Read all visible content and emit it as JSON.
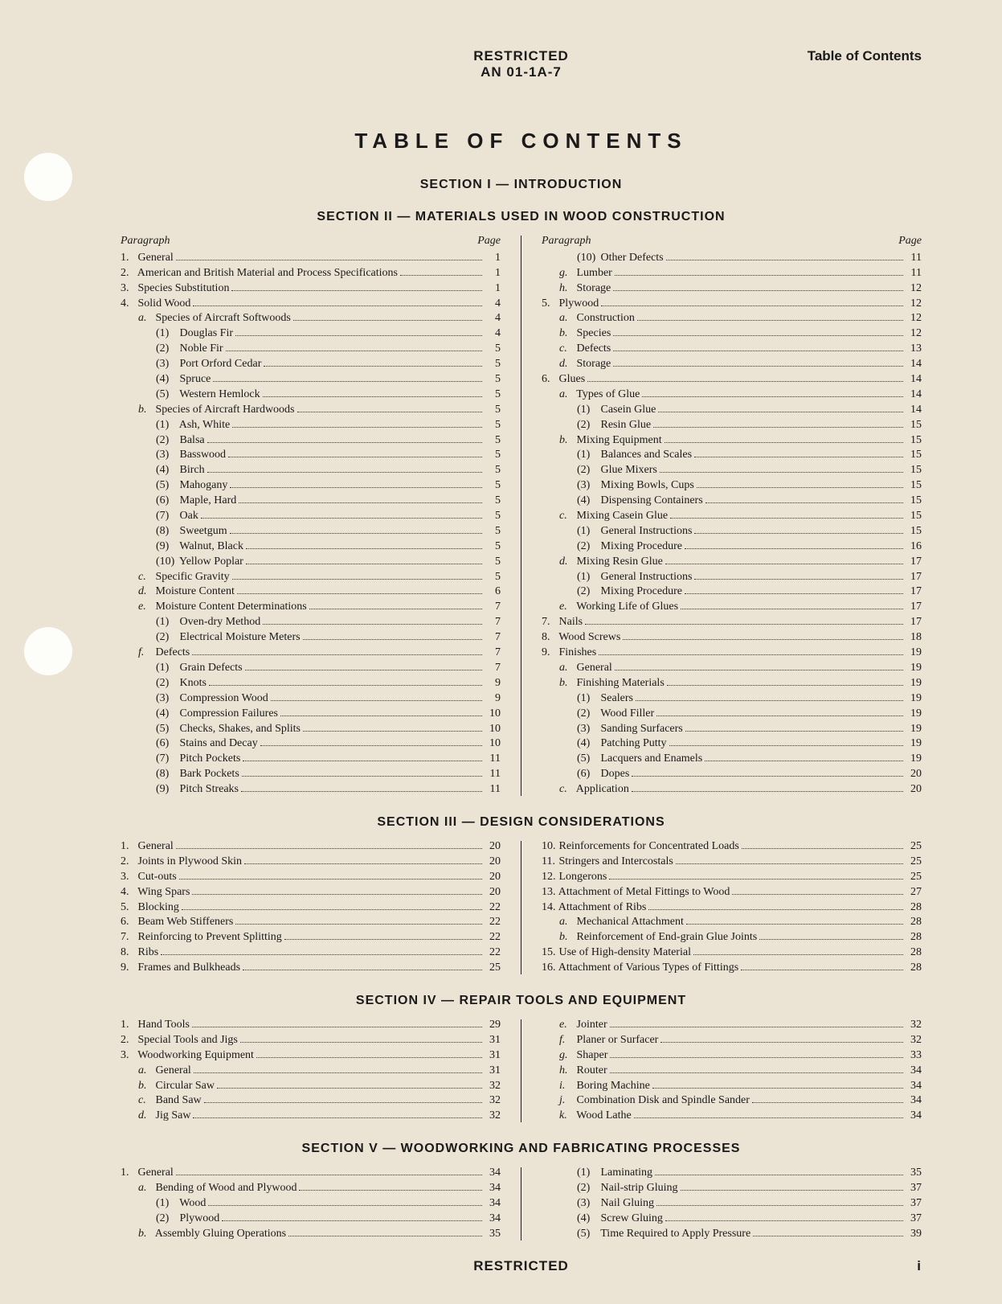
{
  "header": {
    "restricted": "RESTRICTED",
    "doc_id": "AN 01-1A-7",
    "right": "Table of Contents"
  },
  "main_title": "TABLE OF CONTENTS",
  "col_header": {
    "left": "Paragraph",
    "right": "Page"
  },
  "sections": [
    {
      "title": "SECTION I — INTRODUCTION",
      "left": [],
      "right": []
    },
    {
      "title": "SECTION II — MATERIALS USED IN WOOD CONSTRUCTION",
      "left": [
        {
          "i": 0,
          "n": "1.",
          "t": "General",
          "p": "1"
        },
        {
          "i": 0,
          "n": "2.",
          "t": "American and British Material and Process Specifications",
          "p": "1"
        },
        {
          "i": 0,
          "n": "3.",
          "t": "Species Substitution",
          "p": "1"
        },
        {
          "i": 0,
          "n": "4.",
          "t": "Solid Wood",
          "p": "4"
        },
        {
          "i": 1,
          "l": "a.",
          "t": "Species of Aircraft Softwoods",
          "p": "4"
        },
        {
          "i": 2,
          "pn": "(1)",
          "t": "Douglas Fir",
          "p": "4"
        },
        {
          "i": 2,
          "pn": "(2)",
          "t": "Noble Fir",
          "p": "5"
        },
        {
          "i": 2,
          "pn": "(3)",
          "t": "Port Orford Cedar",
          "p": "5"
        },
        {
          "i": 2,
          "pn": "(4)",
          "t": "Spruce",
          "p": "5"
        },
        {
          "i": 2,
          "pn": "(5)",
          "t": "Western Hemlock",
          "p": "5"
        },
        {
          "i": 1,
          "l": "b.",
          "t": "Species of Aircraft Hardwoods",
          "p": "5"
        },
        {
          "i": 2,
          "pn": "(1)",
          "t": "Ash, White",
          "p": "5"
        },
        {
          "i": 2,
          "pn": "(2)",
          "t": "Balsa",
          "p": "5"
        },
        {
          "i": 2,
          "pn": "(3)",
          "t": "Basswood",
          "p": "5"
        },
        {
          "i": 2,
          "pn": "(4)",
          "t": "Birch",
          "p": "5"
        },
        {
          "i": 2,
          "pn": "(5)",
          "t": "Mahogany",
          "p": "5"
        },
        {
          "i": 2,
          "pn": "(6)",
          "t": "Maple, Hard",
          "p": "5"
        },
        {
          "i": 2,
          "pn": "(7)",
          "t": "Oak",
          "p": "5"
        },
        {
          "i": 2,
          "pn": "(8)",
          "t": "Sweetgum",
          "p": "5"
        },
        {
          "i": 2,
          "pn": "(9)",
          "t": "Walnut, Black",
          "p": "5"
        },
        {
          "i": 2,
          "pn": "(10)",
          "t": "Yellow Poplar",
          "p": "5"
        },
        {
          "i": 1,
          "l": "c.",
          "t": "Specific Gravity",
          "p": "5"
        },
        {
          "i": 1,
          "l": "d.",
          "t": "Moisture Content",
          "p": "6"
        },
        {
          "i": 1,
          "l": "e.",
          "t": "Moisture Content Determinations",
          "p": "7"
        },
        {
          "i": 2,
          "pn": "(1)",
          "t": "Oven-dry Method",
          "p": "7"
        },
        {
          "i": 2,
          "pn": "(2)",
          "t": "Electrical Moisture Meters",
          "p": "7"
        },
        {
          "i": 1,
          "l": "f.",
          "t": "Defects",
          "p": "7"
        },
        {
          "i": 2,
          "pn": "(1)",
          "t": "Grain Defects",
          "p": "7"
        },
        {
          "i": 2,
          "pn": "(2)",
          "t": "Knots",
          "p": "9"
        },
        {
          "i": 2,
          "pn": "(3)",
          "t": "Compression Wood",
          "p": "9"
        },
        {
          "i": 2,
          "pn": "(4)",
          "t": "Compression Failures",
          "p": "10"
        },
        {
          "i": 2,
          "pn": "(5)",
          "t": "Checks, Shakes, and Splits",
          "p": "10"
        },
        {
          "i": 2,
          "pn": "(6)",
          "t": "Stains and Decay",
          "p": "10"
        },
        {
          "i": 2,
          "pn": "(7)",
          "t": "Pitch Pockets",
          "p": "11"
        },
        {
          "i": 2,
          "pn": "(8)",
          "t": "Bark Pockets",
          "p": "11"
        },
        {
          "i": 2,
          "pn": "(9)",
          "t": "Pitch Streaks",
          "p": "11"
        }
      ],
      "right": [
        {
          "i": 2,
          "pn": "(10)",
          "t": "Other Defects",
          "p": "11"
        },
        {
          "i": 1,
          "l": "g.",
          "t": "Lumber",
          "p": "11"
        },
        {
          "i": 1,
          "l": "h.",
          "t": "Storage",
          "p": "12"
        },
        {
          "i": 0,
          "n": "5.",
          "t": "Plywood",
          "p": "12"
        },
        {
          "i": 1,
          "l": "a.",
          "t": "Construction",
          "p": "12"
        },
        {
          "i": 1,
          "l": "b.",
          "t": "Species",
          "p": "12"
        },
        {
          "i": 1,
          "l": "c.",
          "t": "Defects",
          "p": "13"
        },
        {
          "i": 1,
          "l": "d.",
          "t": "Storage",
          "p": "14"
        },
        {
          "i": 0,
          "n": "6.",
          "t": "Glues",
          "p": "14"
        },
        {
          "i": 1,
          "l": "a.",
          "t": "Types of Glue",
          "p": "14"
        },
        {
          "i": 2,
          "pn": "(1)",
          "t": "Casein Glue",
          "p": "14"
        },
        {
          "i": 2,
          "pn": "(2)",
          "t": "Resin Glue",
          "p": "15"
        },
        {
          "i": 1,
          "l": "b.",
          "t": "Mixing Equipment",
          "p": "15"
        },
        {
          "i": 2,
          "pn": "(1)",
          "t": "Balances and Scales",
          "p": "15"
        },
        {
          "i": 2,
          "pn": "(2)",
          "t": "Glue Mixers",
          "p": "15"
        },
        {
          "i": 2,
          "pn": "(3)",
          "t": "Mixing Bowls, Cups",
          "p": "15"
        },
        {
          "i": 2,
          "pn": "(4)",
          "t": "Dispensing Containers",
          "p": "15"
        },
        {
          "i": 1,
          "l": "c.",
          "t": "Mixing Casein Glue",
          "p": "15"
        },
        {
          "i": 2,
          "pn": "(1)",
          "t": "General Instructions",
          "p": "15"
        },
        {
          "i": 2,
          "pn": "(2)",
          "t": "Mixing Procedure",
          "p": "16"
        },
        {
          "i": 1,
          "l": "d.",
          "t": "Mixing Resin Glue",
          "p": "17"
        },
        {
          "i": 2,
          "pn": "(1)",
          "t": "General Instructions",
          "p": "17"
        },
        {
          "i": 2,
          "pn": "(2)",
          "t": "Mixing Procedure",
          "p": "17"
        },
        {
          "i": 1,
          "l": "e.",
          "t": "Working Life of Glues",
          "p": "17"
        },
        {
          "i": 0,
          "n": "7.",
          "t": "Nails",
          "p": "17"
        },
        {
          "i": 0,
          "n": "8.",
          "t": "Wood Screws",
          "p": "18"
        },
        {
          "i": 0,
          "n": "9.",
          "t": "Finishes",
          "p": "19"
        },
        {
          "i": 1,
          "l": "a.",
          "t": "General",
          "p": "19"
        },
        {
          "i": 1,
          "l": "b.",
          "t": "Finishing Materials",
          "p": "19"
        },
        {
          "i": 2,
          "pn": "(1)",
          "t": "Sealers",
          "p": "19"
        },
        {
          "i": 2,
          "pn": "(2)",
          "t": "Wood Filler",
          "p": "19"
        },
        {
          "i": 2,
          "pn": "(3)",
          "t": "Sanding Surfacers",
          "p": "19"
        },
        {
          "i": 2,
          "pn": "(4)",
          "t": "Patching Putty",
          "p": "19"
        },
        {
          "i": 2,
          "pn": "(5)",
          "t": "Lacquers and Enamels",
          "p": "19"
        },
        {
          "i": 2,
          "pn": "(6)",
          "t": "Dopes",
          "p": "20"
        },
        {
          "i": 1,
          "l": "c.",
          "t": "Application",
          "p": "20"
        }
      ]
    },
    {
      "title": "SECTION III — DESIGN CONSIDERATIONS",
      "left": [
        {
          "i": 0,
          "n": "1.",
          "t": "General",
          "p": "20"
        },
        {
          "i": 0,
          "n": "2.",
          "t": "Joints in Plywood Skin",
          "p": "20"
        },
        {
          "i": 0,
          "n": "3.",
          "t": "Cut-outs",
          "p": "20"
        },
        {
          "i": 0,
          "n": "4.",
          "t": "Wing Spars",
          "p": "20"
        },
        {
          "i": 0,
          "n": "5.",
          "t": "Blocking",
          "p": "22"
        },
        {
          "i": 0,
          "n": "6.",
          "t": "Beam Web Stiffeners",
          "p": "22"
        },
        {
          "i": 0,
          "n": "7.",
          "t": "Reinforcing to Prevent Splitting",
          "p": "22"
        },
        {
          "i": 0,
          "n": "8.",
          "t": "Ribs",
          "p": "22"
        },
        {
          "i": 0,
          "n": "9.",
          "t": "Frames and Bulkheads",
          "p": "25"
        }
      ],
      "right": [
        {
          "i": 0,
          "n": "10.",
          "t": "Reinforcements for Concentrated Loads",
          "p": "25"
        },
        {
          "i": 0,
          "n": "11.",
          "t": "Stringers and Intercostals",
          "p": "25"
        },
        {
          "i": 0,
          "n": "12.",
          "t": "Longerons",
          "p": "25"
        },
        {
          "i": 0,
          "n": "13.",
          "t": "Attachment of Metal Fittings to Wood",
          "p": "27"
        },
        {
          "i": 0,
          "n": "14.",
          "t": "Attachment of Ribs",
          "p": "28"
        },
        {
          "i": 1,
          "l": "a.",
          "t": "Mechanical Attachment",
          "p": "28"
        },
        {
          "i": 1,
          "l": "b.",
          "t": "Reinforcement of End-grain Glue Joints",
          "p": "28"
        },
        {
          "i": 0,
          "n": "15.",
          "t": "Use of High-density Material",
          "p": "28"
        },
        {
          "i": 0,
          "n": "16.",
          "t": "Attachment of Various Types of Fittings",
          "p": "28"
        }
      ]
    },
    {
      "title": "SECTION IV — REPAIR TOOLS AND EQUIPMENT",
      "left": [
        {
          "i": 0,
          "n": "1.",
          "t": "Hand Tools",
          "p": "29"
        },
        {
          "i": 0,
          "n": "2.",
          "t": "Special Tools and Jigs",
          "p": "31"
        },
        {
          "i": 0,
          "n": "3.",
          "t": "Woodworking Equipment",
          "p": "31"
        },
        {
          "i": 1,
          "l": "a.",
          "t": "General",
          "p": "31"
        },
        {
          "i": 1,
          "l": "b.",
          "t": "Circular Saw",
          "p": "32"
        },
        {
          "i": 1,
          "l": "c.",
          "t": "Band Saw",
          "p": "32"
        },
        {
          "i": 1,
          "l": "d.",
          "t": "Jig Saw",
          "p": "32"
        }
      ],
      "right": [
        {
          "i": 1,
          "l": "e.",
          "t": "Jointer",
          "p": "32"
        },
        {
          "i": 1,
          "l": "f.",
          "t": "Planer or Surfacer",
          "p": "32"
        },
        {
          "i": 1,
          "l": "g.",
          "t": "Shaper",
          "p": "33"
        },
        {
          "i": 1,
          "l": "h.",
          "t": "Router",
          "p": "34"
        },
        {
          "i": 1,
          "l": "i.",
          "t": "Boring Machine",
          "p": "34"
        },
        {
          "i": 1,
          "l": "j.",
          "t": "Combination Disk and Spindle Sander",
          "p": "34"
        },
        {
          "i": 1,
          "l": "k.",
          "t": "Wood Lathe",
          "p": "34"
        }
      ]
    },
    {
      "title": "SECTION V — WOODWORKING AND FABRICATING PROCESSES",
      "left": [
        {
          "i": 0,
          "n": "1.",
          "t": "General",
          "p": "34"
        },
        {
          "i": 1,
          "l": "a.",
          "t": "Bending of Wood and Plywood",
          "p": "34"
        },
        {
          "i": 2,
          "pn": "(1)",
          "t": "Wood",
          "p": "34"
        },
        {
          "i": 2,
          "pn": "(2)",
          "t": "Plywood",
          "p": "34"
        },
        {
          "i": 1,
          "l": "b.",
          "t": "Assembly Gluing Operations",
          "p": "35"
        }
      ],
      "right": [
        {
          "i": 2,
          "pn": "(1)",
          "t": "Laminating",
          "p": "35"
        },
        {
          "i": 2,
          "pn": "(2)",
          "t": "Nail-strip Gluing",
          "p": "37"
        },
        {
          "i": 2,
          "pn": "(3)",
          "t": "Nail Gluing",
          "p": "37"
        },
        {
          "i": 2,
          "pn": "(4)",
          "t": "Screw Gluing",
          "p": "37"
        },
        {
          "i": 2,
          "pn": "(5)",
          "t": "Time Required to Apply Pressure",
          "p": "39"
        }
      ]
    }
  ],
  "footer": {
    "restricted": "RESTRICTED",
    "page": "i"
  }
}
